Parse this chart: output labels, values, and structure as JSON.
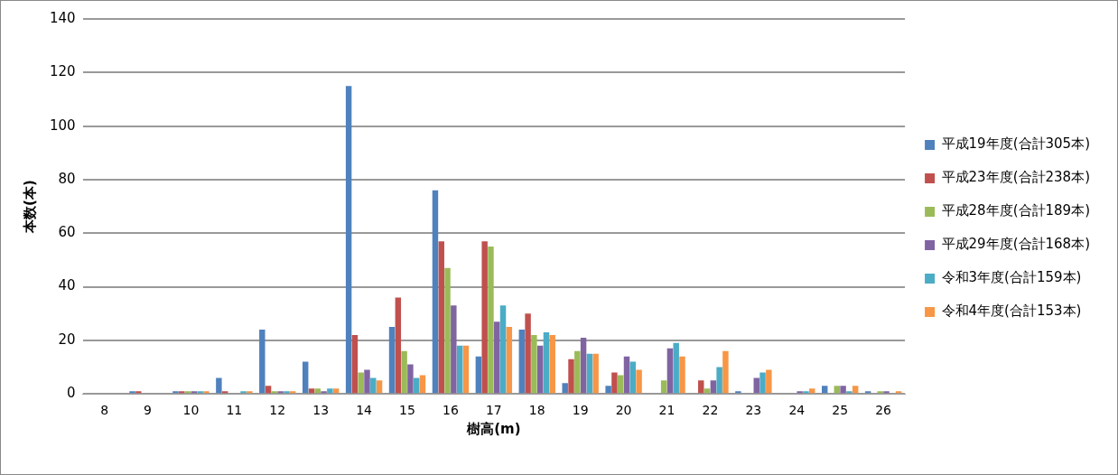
{
  "chart_data": {
    "type": "bar",
    "xlabel": "樹高(m)",
    "ylabel": "本数(本)",
    "categories": [
      "8",
      "9",
      "10",
      "11",
      "12",
      "13",
      "14",
      "15",
      "16",
      "17",
      "18",
      "19",
      "20",
      "21",
      "22",
      "23",
      "24",
      "25",
      "26"
    ],
    "ylim": [
      0,
      140
    ],
    "yticks": [
      0,
      20,
      40,
      60,
      80,
      100,
      120,
      140
    ],
    "grid": "y",
    "legend": "right",
    "series": [
      {
        "name": "平成19年度(合計305本)",
        "color": "#4f81bd",
        "values": [
          0,
          1,
          1,
          6,
          24,
          12,
          115,
          25,
          76,
          14,
          24,
          4,
          3,
          0,
          0,
          1,
          0,
          3,
          1
        ]
      },
      {
        "name": "平成23年度(合計238本)",
        "color": "#c0504d",
        "values": [
          0,
          1,
          1,
          1,
          3,
          2,
          22,
          36,
          57,
          57,
          30,
          13,
          8,
          0,
          5,
          0,
          0,
          0,
          0
        ]
      },
      {
        "name": "平成28年度(合計189本)",
        "color": "#9bbb59",
        "values": [
          0,
          0,
          1,
          0,
          1,
          2,
          8,
          16,
          47,
          55,
          22,
          16,
          7,
          5,
          2,
          0,
          0,
          3,
          1
        ]
      },
      {
        "name": "平成29年度(合計168本)",
        "color": "#8064a2",
        "values": [
          0,
          0,
          1,
          0,
          1,
          1,
          9,
          11,
          33,
          27,
          18,
          21,
          14,
          17,
          5,
          6,
          1,
          3,
          1
        ]
      },
      {
        "name": "令和3年度(合計159本)",
        "color": "#4bacc6",
        "values": [
          0,
          0,
          1,
          1,
          1,
          2,
          6,
          6,
          18,
          33,
          23,
          15,
          12,
          19,
          10,
          8,
          1,
          1,
          0
        ]
      },
      {
        "name": "令和4年度(合計153本)",
        "color": "#f79646",
        "values": [
          0,
          0,
          1,
          1,
          1,
          2,
          5,
          7,
          18,
          25,
          22,
          15,
          9,
          14,
          16,
          9,
          2,
          3,
          1
        ]
      }
    ]
  }
}
